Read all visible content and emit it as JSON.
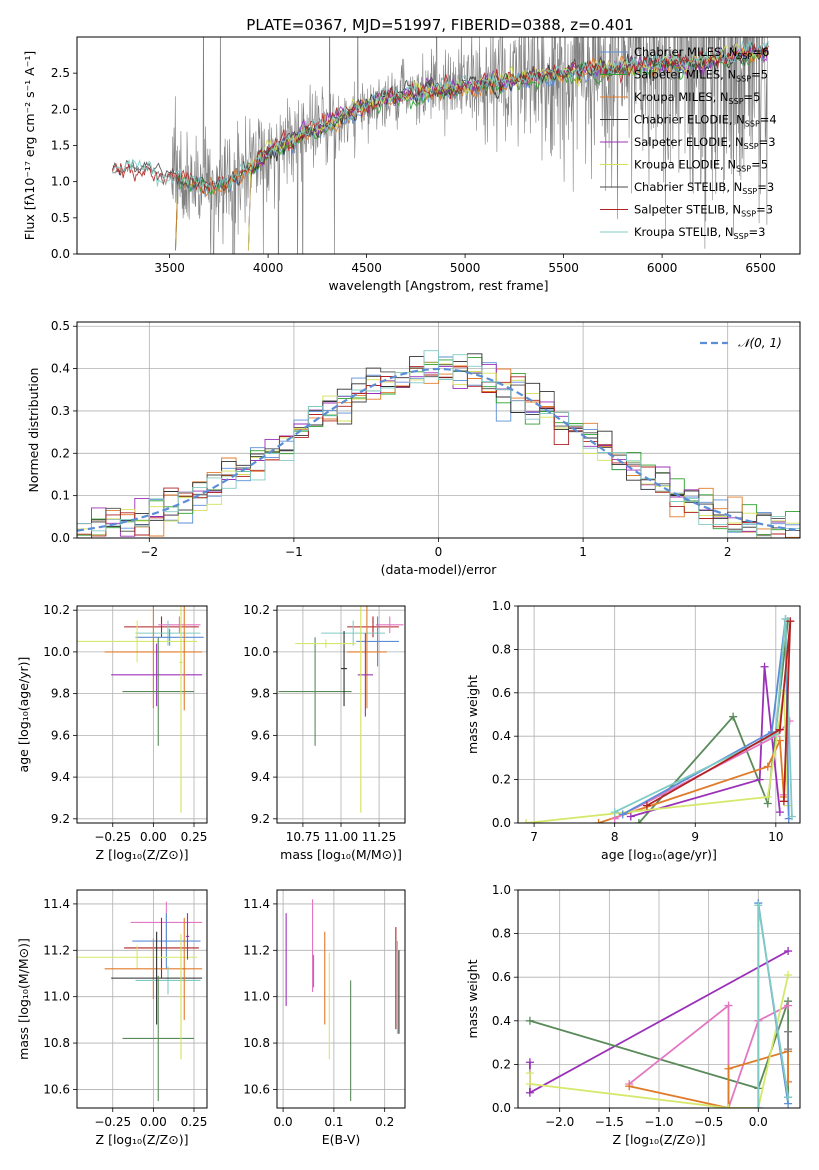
{
  "figure": {
    "title": "PLATE=0367, MJD=51997, FIBERID=0388, z=0.401"
  },
  "colors": {
    "grid": "#b0b0b0",
    "data_spectrum": "#808080",
    "series": [
      "#5b8ed6",
      "#2ca02c",
      "#e07b2a",
      "#2f2f2f",
      "#9b30b8",
      "#d4e157",
      "#4b4b4b",
      "#b22222",
      "#80cbc4",
      "#e377c2",
      "#5a8a5a",
      "#d6e86b"
    ]
  },
  "chart_data": [
    {
      "id": "spectrum",
      "type": "line",
      "xlabel": "wavelength [Angstrom, rest frame]",
      "ylabel": "Flux [fλ10⁻¹⁷ erg cm⁻² s⁻¹ A⁻¹]",
      "xlim": [
        3030,
        6700
      ],
      "ylim": [
        0,
        3.0
      ],
      "xticks": [
        3500,
        4000,
        4500,
        5000,
        5500,
        6000,
        6500
      ],
      "yticks": [
        0.0,
        0.5,
        1.0,
        1.5,
        2.0,
        2.5
      ],
      "grid": false,
      "legend_position": "top-right",
      "legend": [
        {
          "label": "Chabrier MILES, N",
          "sub": "SSP",
          "tail": "=6",
          "color": "#5b8ed6"
        },
        {
          "label": "Salpeter MILES, N",
          "sub": "SSP",
          "tail": "=5",
          "color": "#2ca02c"
        },
        {
          "label": "Kroupa MILES, N",
          "sub": "SSP",
          "tail": "=5",
          "color": "#e07b2a"
        },
        {
          "label": "Chabrier ELODIE, N",
          "sub": "SSP",
          "tail": "=4",
          "color": "#2f2f2f"
        },
        {
          "label": "Salpeter ELODIE, N",
          "sub": "SSP",
          "tail": "=3",
          "color": "#9b30b8"
        },
        {
          "label": "Kroupa ELODIE, N",
          "sub": "SSP",
          "tail": "=5",
          "color": "#d4e157"
        },
        {
          "label": "Chabrier STELIB, N",
          "sub": "SSP",
          "tail": "=3",
          "color": "#4b4b4b"
        },
        {
          "label": "Salpeter STELIB, N",
          "sub": "SSP",
          "tail": "=3",
          "color": "#b22222"
        },
        {
          "label": "Kroupa STELIB, N",
          "sub": "SSP",
          "tail": "=3",
          "color": "#80cbc4"
        }
      ],
      "data_range": [
        3210,
        6540
      ],
      "model_start": {
        "MILES": 3530,
        "ELODIE": 3900,
        "STELIB": 3210
      },
      "continuum": [
        [
          3210,
          1.12
        ],
        [
          3300,
          1.2
        ],
        [
          3400,
          1.16
        ],
        [
          3500,
          1.05
        ],
        [
          3600,
          1.0
        ],
        [
          3700,
          0.92
        ],
        [
          3800,
          0.98
        ],
        [
          3900,
          1.15
        ],
        [
          4000,
          1.4
        ],
        [
          4100,
          1.55
        ],
        [
          4200,
          1.68
        ],
        [
          4300,
          1.78
        ],
        [
          4400,
          1.93
        ],
        [
          4500,
          2.05
        ],
        [
          4600,
          2.15
        ],
        [
          4700,
          2.22
        ],
        [
          4800,
          2.25
        ],
        [
          4900,
          2.28
        ],
        [
          5000,
          2.32
        ],
        [
          5100,
          2.35
        ],
        [
          5200,
          2.38
        ],
        [
          5300,
          2.42
        ],
        [
          5400,
          2.48
        ],
        [
          5500,
          2.5
        ],
        [
          5600,
          2.52
        ],
        [
          5700,
          2.55
        ],
        [
          5800,
          2.57
        ],
        [
          5900,
          2.6
        ],
        [
          6000,
          2.62
        ],
        [
          6100,
          2.63
        ],
        [
          6200,
          2.66
        ],
        [
          6300,
          2.7
        ],
        [
          6400,
          2.74
        ],
        [
          6500,
          2.78
        ],
        [
          6540,
          2.82
        ]
      ],
      "noise_scale": [
        [
          3210,
          0.03
        ],
        [
          3500,
          0.05
        ],
        [
          3520,
          0.7
        ],
        [
          4300,
          0.5
        ],
        [
          4500,
          0.3
        ],
        [
          4900,
          0.5
        ],
        [
          5300,
          0.8
        ],
        [
          5800,
          1.4
        ],
        [
          6200,
          2.0
        ],
        [
          6540,
          2.2
        ]
      ]
    },
    {
      "id": "residuals",
      "type": "step-histogram",
      "xlabel": "(data-model)/error",
      "ylabel": "Normed distribution",
      "xlim": [
        -2.5,
        2.5
      ],
      "ylim": [
        0,
        0.51
      ],
      "xticks": [
        -2,
        -1,
        0,
        1,
        2
      ],
      "yticks": [
        0.0,
        0.1,
        0.2,
        0.3,
        0.4,
        0.5
      ],
      "grid": true,
      "legend_position": "top-right",
      "legend": [
        {
          "label": "𝒩(0, 1)",
          "style": "dashed",
          "color": "#5b8ed6"
        }
      ],
      "bin_width": 0.1
    },
    {
      "id": "age-vs-Z",
      "type": "errorbar",
      "xlabel": "Z [log₁₀(Z/Z⊙)]",
      "ylabel": "age  [log₁₀(age/yr)]",
      "xlim": [
        -0.47,
        0.33
      ],
      "ylim": [
        9.18,
        10.22
      ],
      "xticks": [
        -0.25,
        0.0,
        0.25
      ],
      "yticks": [
        9.2,
        9.4,
        9.6,
        9.8,
        10.0,
        10.2
      ],
      "grid": true,
      "points": [
        {
          "x": 0.05,
          "y": 10.12,
          "xerr": 0.23,
          "yerr": 0.05,
          "color": "#b22222"
        },
        {
          "x": 0.16,
          "y": 10.13,
          "xerr": 0.13,
          "yerr": 0.04,
          "color": "#e377c2"
        },
        {
          "x": 0.09,
          "y": 10.09,
          "xerr": 0.2,
          "yerr": 0.06,
          "color": "#80cbc4"
        },
        {
          "x": 0.1,
          "y": 10.07,
          "xerr": 0.21,
          "yerr": 0.04,
          "color": "#5b8ed6"
        },
        {
          "x": -0.1,
          "y": 10.05,
          "xerr": 0.37,
          "yerr": 0.1,
          "color": "#d6e86b"
        },
        {
          "x": 0.0,
          "y": 10.0,
          "xerr": 0.3,
          "yerr": 0.27,
          "color": "#e07b2a"
        },
        {
          "x": 0.02,
          "y": 9.89,
          "xerr": 0.28,
          "yerr": 0.15,
          "color": "#9b30b8"
        },
        {
          "x": 0.03,
          "y": 9.81,
          "xerr": 0.22,
          "yerr": 0.26,
          "color": "#5a8a5a"
        },
        {
          "x": 0.17,
          "y": 9.95,
          "xerr": 0.01,
          "yerr": 0.72,
          "color": "#d4e157"
        },
        {
          "x": 0.19,
          "y": 10.0,
          "xerr": 0.01,
          "yerr": 0.28,
          "color": "#e07b2a"
        }
      ]
    },
    {
      "id": "age-vs-mass",
      "type": "errorbar",
      "xlabel": "mass [log₁₀(M/M⊙)]",
      "ylabel": "",
      "xlim": [
        10.58,
        11.42
      ],
      "ylim": [
        9.18,
        10.22
      ],
      "xticks": [
        10.75,
        11.0,
        11.25
      ],
      "yticks": [
        9.2,
        9.4,
        9.6,
        9.8,
        10.0,
        10.2
      ],
      "xticklabels": [
        "10.75",
        "11.00",
        "11.25"
      ],
      "grid": true,
      "points": [
        {
          "x": 11.21,
          "y": 10.12,
          "xerr": 0.17,
          "yerr": 0.05,
          "color": "#b22222"
        },
        {
          "x": 11.32,
          "y": 10.13,
          "xerr": 0.09,
          "yerr": 0.04,
          "color": "#e377c2"
        },
        {
          "x": 11.08,
          "y": 10.09,
          "xerr": 0.21,
          "yerr": 0.06,
          "color": "#80cbc4"
        },
        {
          "x": 11.24,
          "y": 10.05,
          "xerr": 0.14,
          "yerr": 0.12,
          "color": "#5b8ed6"
        },
        {
          "x": 11.17,
          "y": 10.0,
          "xerr": 0.13,
          "yerr": 0.27,
          "color": "#e07b2a"
        },
        {
          "x": 11.16,
          "y": 9.89,
          "xerr": 0.05,
          "yerr": 0.2,
          "color": "#9b30b8"
        },
        {
          "x": 10.83,
          "y": 9.81,
          "xerr": 0.24,
          "yerr": 0.26,
          "color": "#5a8a5a"
        },
        {
          "x": 11.02,
          "y": 9.92,
          "xerr": 0.02,
          "yerr": 0.18,
          "color": "#2f2f2f"
        },
        {
          "x": 11.13,
          "y": 9.8,
          "xerr": 0.01,
          "yerr": 0.57,
          "color": "#d4e157"
        },
        {
          "x": 10.9,
          "y": 10.04,
          "xerr": 0.2,
          "yerr": 0.02,
          "color": "#d6e86b"
        }
      ]
    },
    {
      "id": "mass-weight-vs-age",
      "type": "line",
      "xlabel": "age  [log₁₀(age/yr)]",
      "ylabel": "mass weight",
      "xlim": [
        6.8,
        10.3
      ],
      "ylim": [
        0,
        1.0
      ],
      "xticks": [
        7,
        8,
        9,
        10
      ],
      "yticks": [
        0.0,
        0.2,
        0.4,
        0.6,
        0.8,
        1.0
      ],
      "grid": true,
      "series": [
        {
          "color": "#5a8a5a",
          "points": [
            [
              8.3,
              0.0
            ],
            [
              9.47,
              0.49
            ],
            [
              9.9,
              0.09
            ],
            [
              10.15,
              0.93
            ]
          ]
        },
        {
          "color": "#9b30b8",
          "points": [
            [
              8.2,
              0.03
            ],
            [
              9.8,
              0.2
            ],
            [
              9.86,
              0.72
            ],
            [
              10.05,
              0.05
            ]
          ]
        },
        {
          "color": "#e07b2a",
          "points": [
            [
              7.8,
              0.0
            ],
            [
              9.9,
              0.26
            ],
            [
              10.05,
              0.38
            ],
            [
              10.1,
              0.12
            ]
          ]
        },
        {
          "color": "#e377c2",
          "points": [
            [
              8.0,
              0.02
            ],
            [
              10.0,
              0.4
            ],
            [
              10.17,
              0.47
            ],
            [
              10.1,
              0.13
            ]
          ]
        },
        {
          "color": "#d6e86b",
          "points": [
            [
              6.9,
              0.0
            ],
            [
              9.9,
              0.12
            ],
            [
              10.1,
              0.61
            ],
            [
              10.15,
              0.08
            ]
          ]
        },
        {
          "color": "#5b8ed6",
          "points": [
            [
              8.1,
              0.04
            ],
            [
              9.95,
              0.42
            ],
            [
              10.12,
              0.94
            ],
            [
              10.16,
              0.02
            ]
          ]
        },
        {
          "color": "#80cbc4",
          "points": [
            [
              8.0,
              0.05
            ],
            [
              10.0,
              0.41
            ],
            [
              10.12,
              0.94
            ],
            [
              10.2,
              0.03
            ]
          ]
        },
        {
          "color": "#b22222",
          "points": [
            [
              8.4,
              0.08
            ],
            [
              10.05,
              0.43
            ],
            [
              10.18,
              0.93
            ],
            [
              10.1,
              0.1
            ]
          ]
        }
      ]
    },
    {
      "id": "mass-vs-Z",
      "type": "errorbar",
      "xlabel": "Z [log₁₀(Z/Z⊙)]",
      "ylabel": "mass [log₁₀(M/M⊙)]",
      "xlim": [
        -0.47,
        0.33
      ],
      "ylim": [
        10.52,
        11.46
      ],
      "xticks": [
        -0.25,
        0.0,
        0.25
      ],
      "yticks": [
        10.6,
        10.8,
        11.0,
        11.2,
        11.4
      ],
      "grid": true,
      "points": [
        {
          "x": 0.08,
          "y": 11.32,
          "xerr": 0.22,
          "yerr": 0.09,
          "color": "#e377c2"
        },
        {
          "x": 0.08,
          "y": 11.24,
          "xerr": 0.21,
          "yerr": 0.12,
          "color": "#5b8ed6"
        },
        {
          "x": 0.05,
          "y": 11.21,
          "xerr": 0.23,
          "yerr": 0.13,
          "color": "#b22222"
        },
        {
          "x": -0.1,
          "y": 11.17,
          "xerr": 0.37,
          "yerr": 0.05,
          "color": "#d6e86b"
        },
        {
          "x": 0.0,
          "y": 11.12,
          "xerr": 0.3,
          "yerr": 0.13,
          "color": "#e07b2a"
        },
        {
          "x": 0.09,
          "y": 11.07,
          "xerr": 0.2,
          "yerr": 0.06,
          "color": "#80cbc4"
        },
        {
          "x": 0.02,
          "y": 11.08,
          "xerr": 0.28,
          "yerr": 0.2,
          "color": "#2f2f2f"
        },
        {
          "x": 0.03,
          "y": 10.82,
          "xerr": 0.22,
          "yerr": 0.27,
          "color": "#5a8a5a"
        },
        {
          "x": 0.17,
          "y": 11.0,
          "xerr": 0.01,
          "yerr": 0.27,
          "color": "#d4e157"
        },
        {
          "x": 0.19,
          "y": 11.12,
          "xerr": 0.01,
          "yerr": 0.22,
          "color": "#e07b2a"
        },
        {
          "x": 0.21,
          "y": 11.26,
          "xerr": 0.01,
          "yerr": 0.1,
          "color": "#9b30b8"
        }
      ]
    },
    {
      "id": "mass-vs-ebv",
      "type": "errorbar",
      "xlabel": "E(B-V)",
      "ylabel": "",
      "xlim": [
        -0.012,
        0.24
      ],
      "ylim": [
        10.52,
        11.46
      ],
      "xticks": [
        0.0,
        0.1,
        0.2
      ],
      "yticks": [
        10.6,
        10.8,
        11.0,
        11.2,
        11.4
      ],
      "grid": true,
      "points": [
        {
          "x": 0.006,
          "y": 11.16,
          "xerr": 0.0,
          "yerr": 0.2,
          "color": "#9b30b8"
        },
        {
          "x": 0.058,
          "y": 11.22,
          "xerr": 0.0,
          "yerr": 0.2,
          "color": "#e377c2"
        },
        {
          "x": 0.06,
          "y": 11.11,
          "xerr": 0.0,
          "yerr": 0.07,
          "color": "#5b8ed6"
        },
        {
          "x": 0.082,
          "y": 11.08,
          "xerr": 0.0,
          "yerr": 0.2,
          "color": "#e07b2a"
        },
        {
          "x": 0.091,
          "y": 10.96,
          "xerr": 0.0,
          "yerr": 0.23,
          "color": "#d6e86b"
        },
        {
          "x": 0.133,
          "y": 10.81,
          "xerr": 0.0,
          "yerr": 0.26,
          "color": "#5a8a5a"
        },
        {
          "x": 0.222,
          "y": 11.08,
          "xerr": 0.0,
          "yerr": 0.22,
          "color": "#b22222"
        },
        {
          "x": 0.225,
          "y": 11.04,
          "xerr": 0.0,
          "yerr": 0.2,
          "color": "#80cbc4"
        },
        {
          "x": 0.228,
          "y": 11.02,
          "xerr": 0.0,
          "yerr": 0.18,
          "color": "#2f2f2f"
        }
      ]
    },
    {
      "id": "mass-weight-vs-Z",
      "type": "line",
      "xlabel": "Z [log₁₀(Z/Z⊙)]",
      "ylabel": "mass weight",
      "xlim": [
        -2.42,
        0.42
      ],
      "ylim": [
        0,
        1.0
      ],
      "xticks": [
        -2.0,
        -1.5,
        -1.0,
        -0.5,
        0.0
      ],
      "yticks": [
        0.0,
        0.2,
        0.4,
        0.6,
        0.8,
        1.0
      ],
      "grid": true,
      "series": [
        {
          "color": "#9b30b8",
          "points": [
            [
              -2.3,
              0.21
            ],
            [
              -2.3,
              0.07
            ],
            [
              0.3,
              0.72
            ]
          ]
        },
        {
          "color": "#5a8a5a",
          "points": [
            [
              -2.3,
              0.4
            ],
            [
              0.0,
              0.09
            ],
            [
              0.3,
              0.49
            ],
            [
              0.3,
              0.05
            ]
          ]
        },
        {
          "color": "#e377c2",
          "points": [
            [
              -1.3,
              0.11
            ],
            [
              -0.3,
              0.47
            ],
            [
              -0.3,
              0.0
            ],
            [
              0.0,
              0.4
            ],
            [
              0.3,
              0.47
            ]
          ]
        },
        {
          "color": "#e07b2a",
          "points": [
            [
              -1.3,
              0.1
            ],
            [
              -0.3,
              0.0
            ],
            [
              -0.3,
              0.18
            ],
            [
              0.3,
              0.26
            ],
            [
              0.3,
              0.12
            ]
          ]
        },
        {
          "color": "#d6e86b",
          "points": [
            [
              -2.3,
              0.16
            ],
            [
              -2.3,
              0.11
            ],
            [
              -0.3,
              0.0
            ],
            [
              0.0,
              0.0
            ],
            [
              0.3,
              0.61
            ]
          ]
        },
        {
          "color": "#5b8ed6",
          "points": [
            [
              0.0,
              0.0
            ],
            [
              0.0,
              0.94
            ],
            [
              0.3,
              0.02
            ]
          ]
        },
        {
          "color": "#80cbc4",
          "points": [
            [
              0.0,
              0.0
            ],
            [
              0.0,
              0.93
            ],
            [
              0.3,
              0.05
            ]
          ]
        },
        {
          "color": "#808080",
          "points": [
            [
              0.3,
              0.35
            ],
            [
              0.3,
              0.27
            ]
          ]
        }
      ]
    }
  ]
}
